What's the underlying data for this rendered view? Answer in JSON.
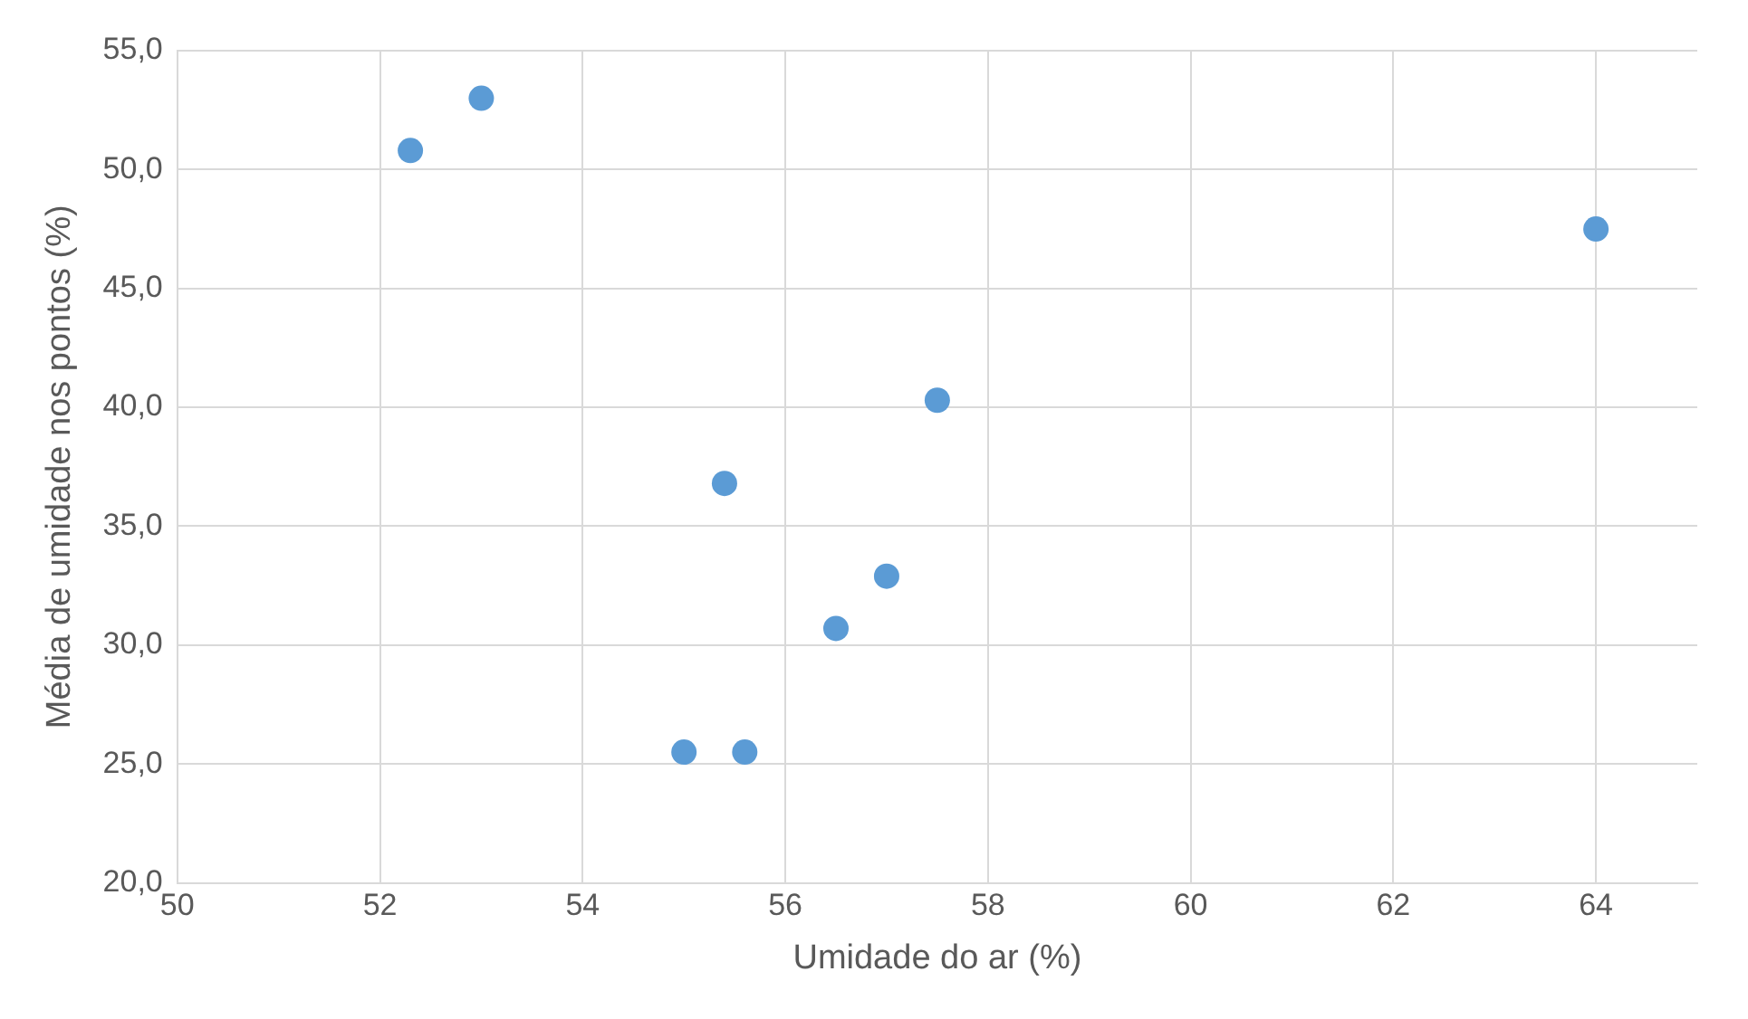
{
  "chart_data": {
    "type": "scatter",
    "xlabel": "Umidade do ar (%)",
    "ylabel": "Média de umidade nos pontos (%)",
    "x": [
      52.3,
      53.0,
      64.0,
      57.5,
      55.4,
      57.0,
      56.5,
      55.0,
      55.6
    ],
    "values": [
      50.8,
      53.0,
      47.5,
      40.3,
      36.8,
      32.9,
      30.7,
      25.5,
      25.5
    ],
    "color": "#5b9bd5",
    "marker": "circle",
    "grid": true,
    "legend": false,
    "xlim": [
      50,
      65
    ],
    "xticks": [
      50,
      52,
      54,
      56,
      58,
      60,
      62,
      64
    ],
    "ylim": [
      20,
      55
    ],
    "yticks": [
      {
        "value": 20,
        "label": "20,0"
      },
      {
        "value": 25,
        "label": "25,0"
      },
      {
        "value": 30,
        "label": "30,0"
      },
      {
        "value": 35,
        "label": "35,0"
      },
      {
        "value": 40,
        "label": "40,0"
      },
      {
        "value": 45,
        "label": "45,0"
      },
      {
        "value": 50,
        "label": "50,0"
      },
      {
        "value": 55,
        "label": "55,0"
      }
    ]
  }
}
